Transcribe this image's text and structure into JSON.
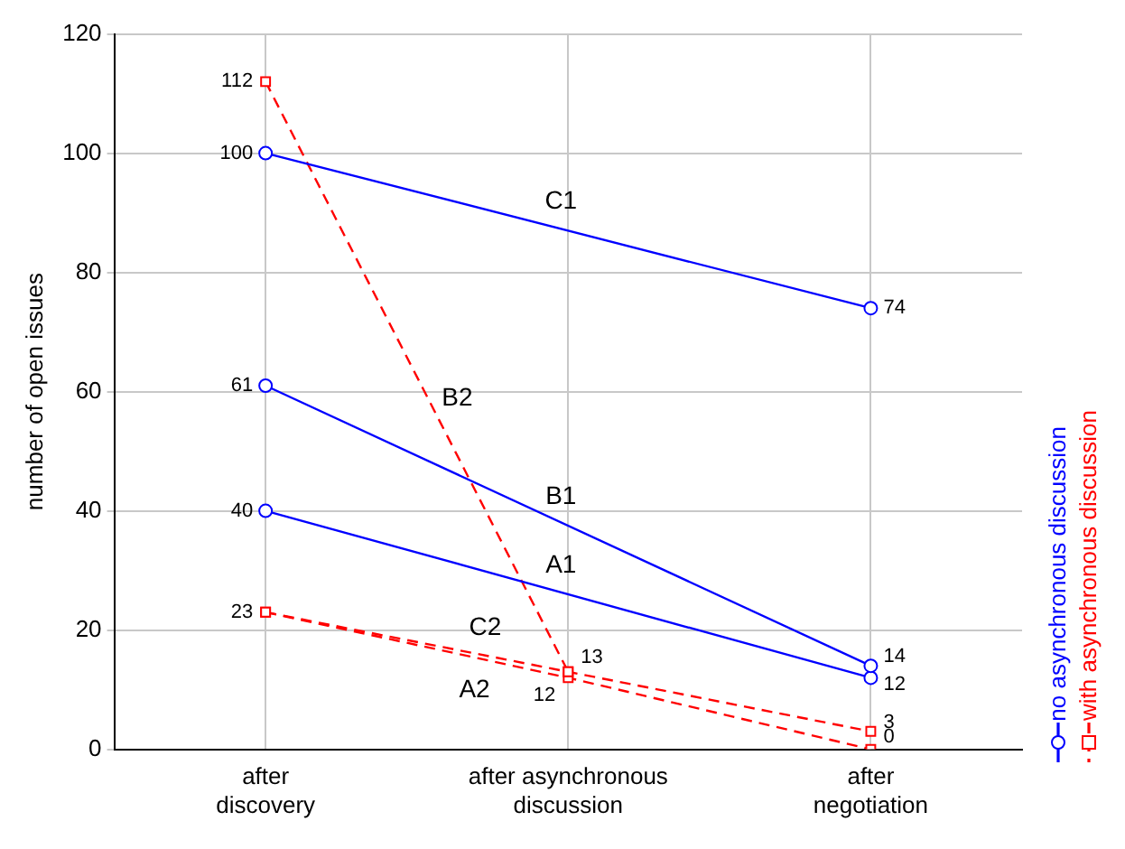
{
  "chart_data": {
    "type": "line",
    "ylabel": "number of open issues",
    "categories": [
      "after\ndiscovery",
      "after asynchronous\ndiscussion",
      "after\nnegotiation"
    ],
    "ylim": [
      0,
      120
    ],
    "yticks": [
      0,
      20,
      40,
      60,
      80,
      100,
      120
    ],
    "grid": true,
    "legend": "right",
    "series": [
      {
        "name": "no asynchronous discussion",
        "color": "#0000ff",
        "marker": "circle",
        "line_style": "solid",
        "values": [
          100,
          null,
          74
        ],
        "value_labels": [
          "100",
          null,
          "74"
        ]
      },
      {
        "color": "#0000ff",
        "marker": "circle",
        "line_style": "solid",
        "values": [
          61,
          null,
          14
        ],
        "value_labels": [
          "61",
          null,
          "14"
        ]
      },
      {
        "color": "#0000ff",
        "marker": "circle",
        "line_style": "solid",
        "values": [
          40,
          null,
          12
        ],
        "value_labels": [
          "40",
          null,
          "12"
        ]
      },
      {
        "name": "with asynchronous discussion",
        "color": "#ff0000",
        "marker": "square",
        "line_style": "dashed",
        "values": [
          112,
          13,
          null
        ],
        "value_labels": [
          "112",
          "13",
          null
        ]
      },
      {
        "color": "#ff0000",
        "marker": "square",
        "line_style": "dashed",
        "values": [
          23,
          13,
          3
        ],
        "value_labels": [
          null,
          null,
          "3"
        ]
      },
      {
        "color": "#ff0000",
        "marker": "square",
        "line_style": "dashed",
        "values": [
          23,
          12,
          0
        ],
        "value_labels": [
          "23",
          "12",
          "0"
        ]
      }
    ],
    "annotations": [
      "C1",
      "B1",
      "A1",
      "B2",
      "C2",
      "A2"
    ]
  }
}
